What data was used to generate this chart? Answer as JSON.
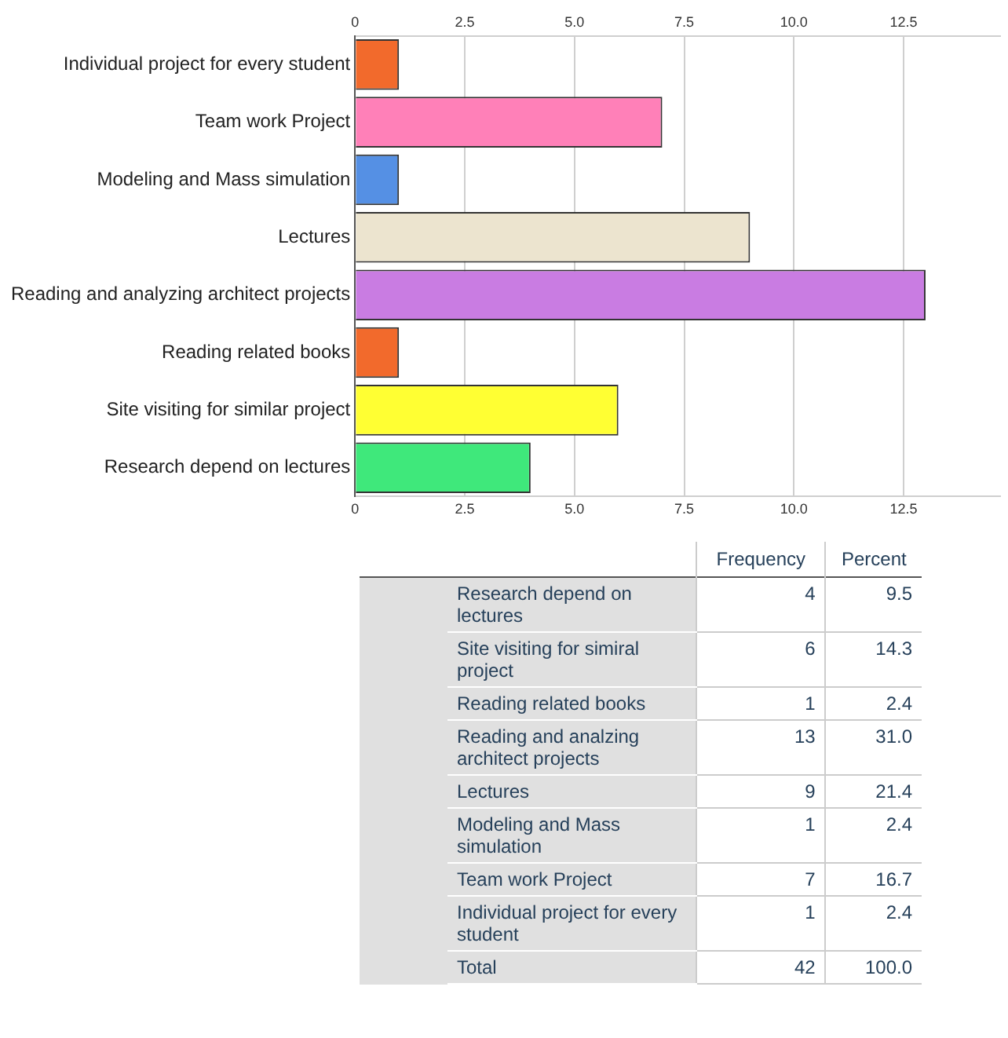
{
  "chart_data": [
    {
      "type": "bar",
      "orientation": "horizontal",
      "categories": [
        "Individual project for every student",
        "Team work Project",
        "Modeling and Mass simulation",
        "Lectures",
        "Reading and analyzing architect projects",
        "Reading related books",
        "Site visiting for similar project",
        "Research depend on lectures"
      ],
      "values": [
        1,
        7,
        1,
        9,
        13,
        1,
        6,
        4
      ],
      "colors": [
        "#f26a2c",
        "#ff80b8",
        "#5590e4",
        "#ece4cf",
        "#c97ce2",
        "#f26a2c",
        "#ffff33",
        "#3fe87b"
      ],
      "xlim": [
        0,
        14.7
      ],
      "xticks": [
        0,
        2.5,
        {
          "value": 5,
          "label": "5.0"
        },
        {
          "value": 7.5,
          "label": "7.5"
        },
        {
          "value": 10,
          "label": "10.0"
        },
        {
          "value": 12.5,
          "label": "12.5"
        }
      ],
      "x2lim": [
        0,
        14.7
      ],
      "x2ticks": [
        0,
        2.5,
        {
          "value": 5,
          "label": "5.0"
        },
        {
          "value": 7.5,
          "label": "7.5"
        },
        {
          "value": 10,
          "label": "10.0"
        },
        {
          "value": 12.5,
          "label": "12.5"
        }
      ],
      "grid": "x"
    },
    {
      "type": "other",
      "categories": [
        "Research depend on lectures",
        "Site visiting for simiral project",
        "Reading related books",
        "Reading and analzing architect projects",
        "Lectures",
        "Modeling and Mass simulation",
        "Team work Project",
        "Individual project for every student",
        "Total"
      ],
      "series": [
        {
          "name": "Frequency",
          "values": [
            4,
            6,
            1,
            13,
            9,
            1,
            7,
            1,
            42
          ],
          "value_labels": [
            "4",
            "6",
            "1",
            "13",
            "9",
            "1",
            "7",
            "1",
            "42"
          ]
        },
        {
          "name": "Percent",
          "values": [
            9.5,
            14.3,
            2.4,
            31.0,
            21.4,
            2.4,
            16.7,
            2.4,
            100.0
          ],
          "value_labels": [
            "9.5",
            "14.3",
            "2.4",
            "31.0",
            "21.4",
            "2.4",
            "16.7",
            "2.4",
            "100.0"
          ]
        }
      ],
      "data_labels": true
    }
  ]
}
